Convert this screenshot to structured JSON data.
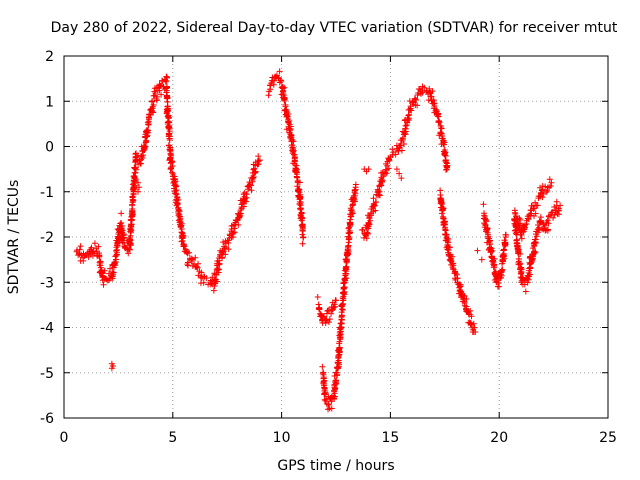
{
  "chart_data": {
    "type": "scatter",
    "title": "Day 280 of 2022, Sidereal Day-to-day VTEC variation (SDTVAR) for receiver mtut",
    "xlabel": "GPS time / hours",
    "ylabel": "SDTVAR / TECUs",
    "xlim": [
      0,
      25
    ],
    "ylim": [
      -6,
      2
    ],
    "xticks": [
      0,
      5,
      10,
      15,
      20,
      25
    ],
    "yticks": [
      -6,
      -5,
      -4,
      -3,
      -2,
      -1,
      0,
      1,
      2
    ],
    "grid": true,
    "marker": "+",
    "color": "#ff0000",
    "series": [
      {
        "name": "SDTVAR",
        "trace": [
          [
            0.6,
            -2.3
          ],
          [
            0.8,
            -2.4
          ],
          [
            1.0,
            -2.35
          ],
          [
            1.2,
            -2.3
          ],
          [
            1.4,
            -2.3
          ],
          [
            1.6,
            -2.4
          ],
          [
            1.8,
            -2.9
          ],
          [
            2.0,
            -2.95
          ],
          [
            2.2,
            -2.9
          ],
          [
            2.4,
            -2.4
          ],
          [
            2.5,
            -2.0
          ],
          [
            2.6,
            -1.7
          ],
          [
            2.8,
            -2.2
          ],
          [
            3.0,
            -2.3
          ],
          [
            3.2,
            -1.0
          ],
          [
            3.3,
            -0.2
          ],
          [
            3.5,
            -0.3
          ],
          [
            3.7,
            0.0
          ],
          [
            3.9,
            0.6
          ],
          [
            4.1,
            1.0
          ],
          [
            4.3,
            1.2
          ],
          [
            4.5,
            1.4
          ],
          [
            4.7,
            1.4
          ],
          [
            4.8,
            0.5
          ],
          [
            4.9,
            -0.3
          ],
          [
            5.1,
            -0.8
          ],
          [
            5.3,
            -1.5
          ],
          [
            5.5,
            -2.2
          ],
          [
            5.8,
            -2.5
          ],
          [
            6.1,
            -2.7
          ],
          [
            6.4,
            -2.9
          ],
          [
            6.7,
            -3.0
          ],
          [
            6.9,
            -3.05
          ],
          [
            7.1,
            -2.6
          ],
          [
            7.4,
            -2.2
          ],
          [
            7.7,
            -1.9
          ],
          [
            8.0,
            -1.6
          ],
          [
            8.3,
            -1.1
          ],
          [
            8.6,
            -0.8
          ],
          [
            8.8,
            -0.5
          ],
          [
            9.0,
            -0.3
          ]
        ],
        "trace2": [
          [
            9.4,
            1.2
          ],
          [
            9.6,
            1.4
          ],
          [
            9.8,
            1.55
          ],
          [
            10.0,
            1.4
          ],
          [
            10.2,
            0.8
          ],
          [
            10.4,
            0.3
          ],
          [
            10.6,
            -0.3
          ],
          [
            10.8,
            -1.0
          ],
          [
            11.0,
            -2.0
          ]
        ],
        "trace3": [
          [
            11.9,
            -5.0
          ],
          [
            12.0,
            -5.5
          ],
          [
            12.2,
            -5.7
          ],
          [
            12.4,
            -5.5
          ],
          [
            12.6,
            -4.8
          ],
          [
            12.8,
            -3.5
          ],
          [
            13.0,
            -2.5
          ],
          [
            13.2,
            -1.5
          ],
          [
            13.4,
            -0.9
          ]
        ],
        "trace4": [
          [
            11.7,
            -3.5
          ],
          [
            11.9,
            -3.9
          ],
          [
            12.1,
            -3.7
          ],
          [
            12.3,
            -3.6
          ],
          [
            12.5,
            -3.4
          ]
        ],
        "trace5": [
          [
            13.7,
            -1.8
          ],
          [
            13.9,
            -1.9
          ],
          [
            14.1,
            -1.5
          ],
          [
            14.4,
            -1.1
          ],
          [
            14.7,
            -0.6
          ],
          [
            15.0,
            -0.2
          ],
          [
            15.3,
            -0.1
          ],
          [
            15.6,
            0.2
          ],
          [
            15.9,
            0.8
          ],
          [
            16.2,
            1.1
          ],
          [
            16.5,
            1.3
          ],
          [
            16.8,
            1.2
          ],
          [
            17.1,
            0.8
          ],
          [
            17.4,
            0.2
          ],
          [
            17.6,
            -0.5
          ]
        ],
        "trace6": [
          [
            17.3,
            -1.0
          ],
          [
            17.5,
            -1.8
          ],
          [
            17.7,
            -2.4
          ],
          [
            17.9,
            -2.7
          ],
          [
            18.1,
            -3.0
          ],
          [
            18.3,
            -3.3
          ],
          [
            18.5,
            -3.6
          ],
          [
            18.7,
            -3.9
          ],
          [
            18.9,
            -4.1
          ]
        ],
        "trace7": [
          [
            19.3,
            -1.5
          ],
          [
            19.5,
            -2.0
          ],
          [
            19.7,
            -2.5
          ],
          [
            19.9,
            -3.0
          ],
          [
            20.1,
            -2.8
          ],
          [
            20.3,
            -2.0
          ]
        ],
        "trace8": [
          [
            20.7,
            -1.5
          ],
          [
            20.9,
            -2.5
          ],
          [
            21.1,
            -3.0
          ],
          [
            21.3,
            -3.0
          ],
          [
            21.5,
            -2.5
          ],
          [
            21.7,
            -2.0
          ],
          [
            21.9,
            -1.7
          ],
          [
            22.1,
            -1.8
          ],
          [
            22.3,
            -1.6
          ],
          [
            22.5,
            -1.5
          ],
          [
            22.8,
            -1.3
          ]
        ],
        "trace9": [
          [
            20.8,
            -1.6
          ],
          [
            21.0,
            -1.9
          ],
          [
            21.2,
            -1.7
          ],
          [
            21.4,
            -1.5
          ],
          [
            21.6,
            -1.3
          ],
          [
            21.8,
            -1.2
          ],
          [
            22.0,
            -1.0
          ],
          [
            22.2,
            -0.9
          ],
          [
            22.4,
            -0.8
          ]
        ],
        "clusters": [
          [
            2.2,
            -4.8
          ],
          [
            2.25,
            -4.85
          ],
          [
            2.2,
            -4.9
          ],
          [
            13.8,
            -0.5
          ],
          [
            13.9,
            -0.55
          ],
          [
            14.0,
            -0.5
          ],
          [
            3.4,
            -0.8
          ],
          [
            3.45,
            -0.9
          ],
          [
            3.4,
            -1.0
          ],
          [
            15.3,
            -0.5
          ],
          [
            15.4,
            -0.6
          ],
          [
            15.5,
            -0.7
          ],
          [
            18.0,
            -2.8
          ],
          [
            18.2,
            -3.1
          ],
          [
            18.4,
            -3.3
          ],
          [
            19.0,
            -2.3
          ],
          [
            19.2,
            -2.5
          ]
        ]
      }
    ]
  }
}
